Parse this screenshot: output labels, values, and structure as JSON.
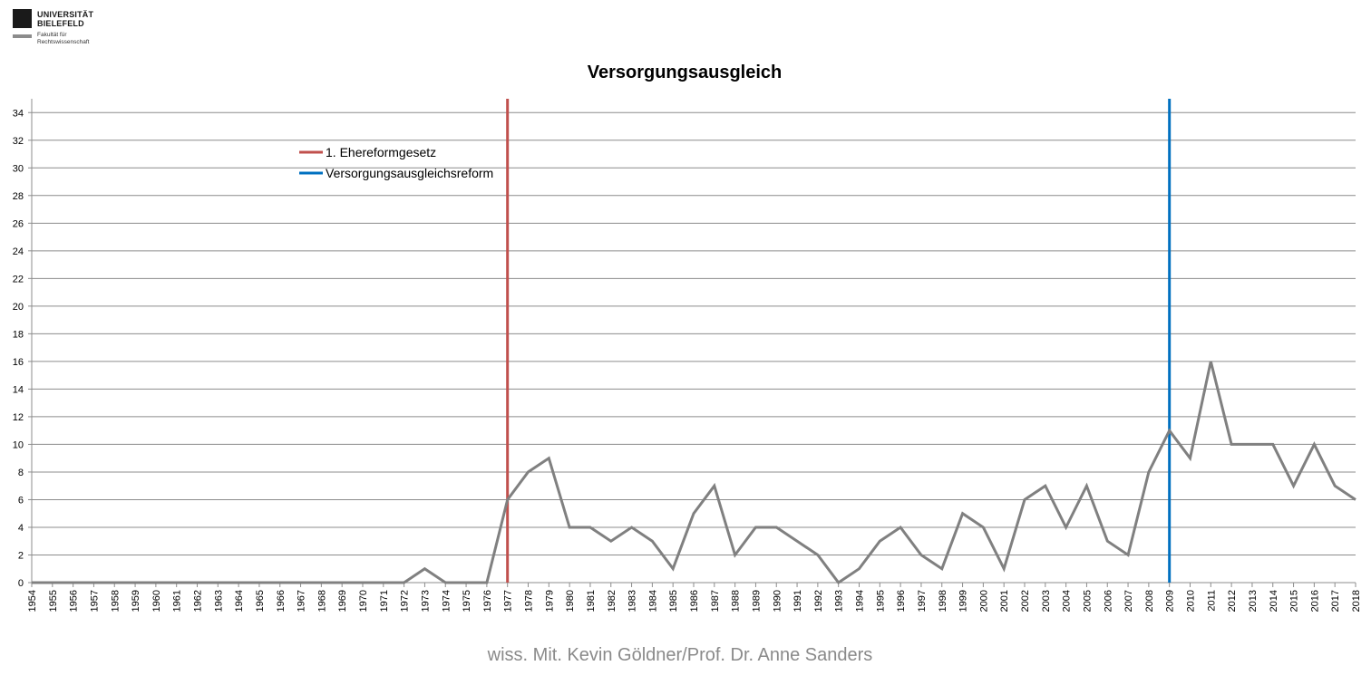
{
  "header": {
    "logo_name": "UNIVERSITÄT\nBIELEFELD",
    "logo_subtitle": "Fakultät für\nRechtswissenschaft"
  },
  "footer": {
    "credit": "wiss. Mit. Kevin Göldner/Prof.  Dr. Anne Sanders"
  },
  "chart_data": {
    "type": "line",
    "title": "Versorgungsausgleich",
    "xlabel": "",
    "ylabel": "",
    "x": [
      1954,
      1955,
      1956,
      1957,
      1958,
      1959,
      1960,
      1961,
      1962,
      1963,
      1964,
      1965,
      1966,
      1967,
      1968,
      1969,
      1970,
      1971,
      1972,
      1973,
      1974,
      1975,
      1976,
      1977,
      1978,
      1979,
      1980,
      1981,
      1982,
      1983,
      1984,
      1985,
      1986,
      1987,
      1988,
      1989,
      1990,
      1991,
      1992,
      1993,
      1994,
      1995,
      1996,
      1997,
      1998,
      1999,
      2000,
      2001,
      2002,
      2003,
      2004,
      2005,
      2006,
      2007,
      2008,
      2009,
      2010,
      2011,
      2012,
      2013,
      2014,
      2015,
      2016,
      2017,
      2018
    ],
    "series": [
      {
        "values": [
          0,
          0,
          0,
          0,
          0,
          0,
          0,
          0,
          0,
          0,
          0,
          0,
          0,
          0,
          0,
          0,
          0,
          0,
          0,
          1,
          0,
          0,
          0,
          6,
          8,
          9,
          4,
          4,
          3,
          4,
          3,
          1,
          5,
          7,
          2,
          4,
          4,
          3,
          2,
          0,
          1,
          3,
          4,
          2,
          1,
          5,
          4,
          1,
          6,
          7,
          4,
          7,
          3,
          2,
          8,
          11,
          9,
          16,
          10,
          10,
          10,
          7,
          10,
          7,
          6
        ],
        "color": "#808080"
      }
    ],
    "markers": [
      {
        "name": "1. Ehereformgesetz",
        "x": 1977,
        "color": "#c0504d"
      },
      {
        "name": "Versorgungsausgleichsreform",
        "x": 2009,
        "color": "#0070c0"
      }
    ],
    "ylim": [
      0,
      35
    ],
    "yticks": [
      0,
      2,
      4,
      6,
      8,
      10,
      12,
      14,
      16,
      18,
      20,
      22,
      24,
      26,
      28,
      30,
      32,
      34
    ],
    "grid": true,
    "legend_position": "top-left"
  }
}
